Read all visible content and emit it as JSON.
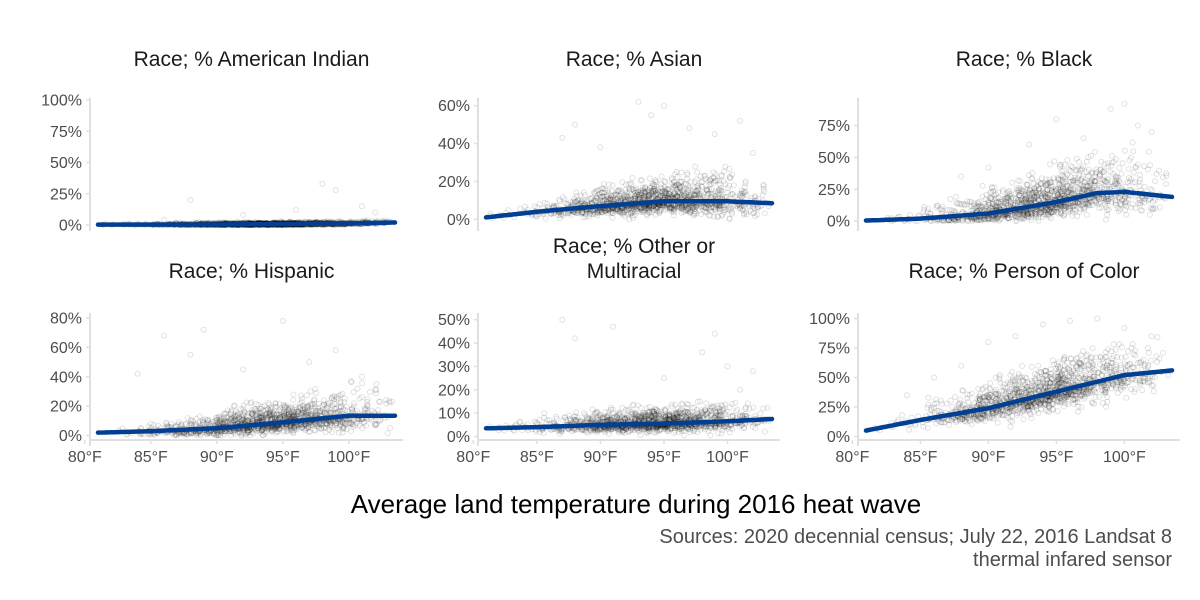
{
  "chart_data": {
    "type": "scatter",
    "layout": "facet-grid",
    "rows": 2,
    "cols": 3,
    "xlabel": "Average land temperature during 2016 heat wave",
    "caption_lines": [
      "Sources: 2020 decennial census; July 22, 2016 Landsat 8",
      "thermal infared sensor"
    ],
    "x_ticks": [
      80,
      85,
      90,
      95,
      100
    ],
    "x_tick_labels": [
      "80°F",
      "85°F",
      "90°F",
      "95°F",
      "100°F"
    ],
    "xlim": [
      81,
      103.5
    ],
    "trend_color": "#003f91",
    "point_color": "#000000",
    "panels": [
      {
        "title_lines": [
          "Race; % American Indian"
        ],
        "ylim": [
          0,
          100
        ],
        "y_ticks": [
          0,
          25,
          50,
          75,
          100
        ],
        "y_tick_labels": [
          "0%",
          "25%",
          "50%",
          "75%",
          "100%"
        ],
        "show_x_axis": false,
        "trend": [
          [
            81,
            0.3
          ],
          [
            85,
            0.3
          ],
          [
            90,
            0.4
          ],
          [
            95,
            0.7
          ],
          [
            100,
            1.3
          ],
          [
            103.5,
            2
          ]
        ],
        "spread": {
          "base": 0.5,
          "slope": 0.05,
          "max": 5,
          "outliers": [
            [
              86,
              4
            ],
            [
              88,
              20
            ],
            [
              92,
              8
            ],
            [
              96,
              12
            ],
            [
              98,
              33
            ],
            [
              99,
              28
            ],
            [
              101,
              15
            ],
            [
              102,
              10
            ]
          ]
        }
      },
      {
        "title_lines": [
          "Race; % Asian"
        ],
        "ylim": [
          -3,
          63
        ],
        "y_ticks": [
          0,
          20,
          40,
          60
        ],
        "y_tick_labels": [
          "0%",
          "20%",
          "40%",
          "60%"
        ],
        "show_x_axis": false,
        "trend": [
          [
            81,
            1
          ],
          [
            85,
            4
          ],
          [
            90,
            7
          ],
          [
            95,
            9.5
          ],
          [
            100,
            9.5
          ],
          [
            103.5,
            8.5
          ]
        ],
        "spread": {
          "base": 2,
          "slope": 0.6,
          "max": 20,
          "outliers": [
            [
              87,
              43
            ],
            [
              88,
              50
            ],
            [
              90,
              38
            ],
            [
              93,
              62
            ],
            [
              94,
              55
            ],
            [
              95,
              60
            ],
            [
              97,
              48
            ],
            [
              99,
              45
            ],
            [
              101,
              52
            ],
            [
              102,
              35
            ]
          ]
        }
      },
      {
        "title_lines": [
          "Race; % Black"
        ],
        "ylim": [
          -3,
          95
        ],
        "y_ticks": [
          0,
          25,
          50,
          75
        ],
        "y_tick_labels": [
          "0%",
          "25%",
          "50%",
          "75%"
        ],
        "show_x_axis": false,
        "trend": [
          [
            81,
            0.5
          ],
          [
            85,
            2
          ],
          [
            90,
            6
          ],
          [
            95,
            15
          ],
          [
            98,
            22
          ],
          [
            100,
            23
          ],
          [
            103.5,
            19
          ]
        ],
        "spread": {
          "base": 2,
          "slope": 1.4,
          "max": 40,
          "outliers": [
            [
              88,
              35
            ],
            [
              90,
              42
            ],
            [
              93,
              60
            ],
            [
              95,
              80
            ],
            [
              97,
              65
            ],
            [
              99,
              88
            ],
            [
              100,
              92
            ],
            [
              101,
              75
            ],
            [
              102,
              70
            ]
          ]
        }
      },
      {
        "title_lines": [
          "Race; % Hispanic"
        ],
        "ylim": [
          -3,
          82
        ],
        "y_ticks": [
          0,
          20,
          40,
          60,
          80
        ],
        "y_tick_labels": [
          "0%",
          "20%",
          "40%",
          "60%",
          "80%"
        ],
        "show_x_axis": true,
        "trend": [
          [
            81,
            2
          ],
          [
            85,
            3
          ],
          [
            90,
            5
          ],
          [
            95,
            9
          ],
          [
            100,
            13.5
          ],
          [
            103.5,
            13.5
          ]
        ],
        "spread": {
          "base": 2,
          "slope": 0.7,
          "max": 30,
          "outliers": [
            [
              84,
              42
            ],
            [
              86,
              68
            ],
            [
              88,
              55
            ],
            [
              89,
              72
            ],
            [
              92,
              45
            ],
            [
              95,
              78
            ],
            [
              97,
              50
            ],
            [
              99,
              58
            ],
            [
              101,
              40
            ]
          ]
        }
      },
      {
        "title_lines": [
          "Race; % Other or",
          "Multiracial"
        ],
        "ylim": [
          -1.5,
          52
        ],
        "y_ticks": [
          0,
          10,
          20,
          30,
          40,
          50
        ],
        "y_tick_labels": [
          "0%",
          "10%",
          "20%",
          "30%",
          "40%",
          "50%"
        ],
        "show_x_axis": true,
        "trend": [
          [
            81,
            3.5
          ],
          [
            85,
            4
          ],
          [
            90,
            5
          ],
          [
            95,
            5.5
          ],
          [
            100,
            6.5
          ],
          [
            103.5,
            7.5
          ]
        ],
        "spread": {
          "base": 2,
          "slope": 0.2,
          "max": 9,
          "outliers": [
            [
              87,
              50
            ],
            [
              88,
              42
            ],
            [
              91,
              47
            ],
            [
              95,
              25
            ],
            [
              98,
              36
            ],
            [
              99,
              44
            ],
            [
              100,
              30
            ],
            [
              101,
              20
            ],
            [
              102,
              28
            ]
          ]
        }
      },
      {
        "title_lines": [
          "Race; % Person of Color"
        ],
        "ylim": [
          -3,
          103
        ],
        "y_ticks": [
          0,
          25,
          50,
          75,
          100
        ],
        "y_tick_labels": [
          "0%",
          "25%",
          "50%",
          "75%",
          "100%"
        ],
        "show_x_axis": true,
        "trend": [
          [
            81,
            5
          ],
          [
            85,
            14
          ],
          [
            90,
            24
          ],
          [
            95,
            38
          ],
          [
            100,
            52
          ],
          [
            103.5,
            56
          ]
        ],
        "spread": {
          "base": 5,
          "slope": 1.2,
          "max": 30,
          "outliers": [
            [
              84,
              35
            ],
            [
              86,
              50
            ],
            [
              88,
              60
            ],
            [
              90,
              80
            ],
            [
              92,
              85
            ],
            [
              94,
              95
            ],
            [
              96,
              98
            ],
            [
              98,
              100
            ],
            [
              100,
              92
            ],
            [
              102,
              85
            ]
          ]
        }
      }
    ]
  }
}
